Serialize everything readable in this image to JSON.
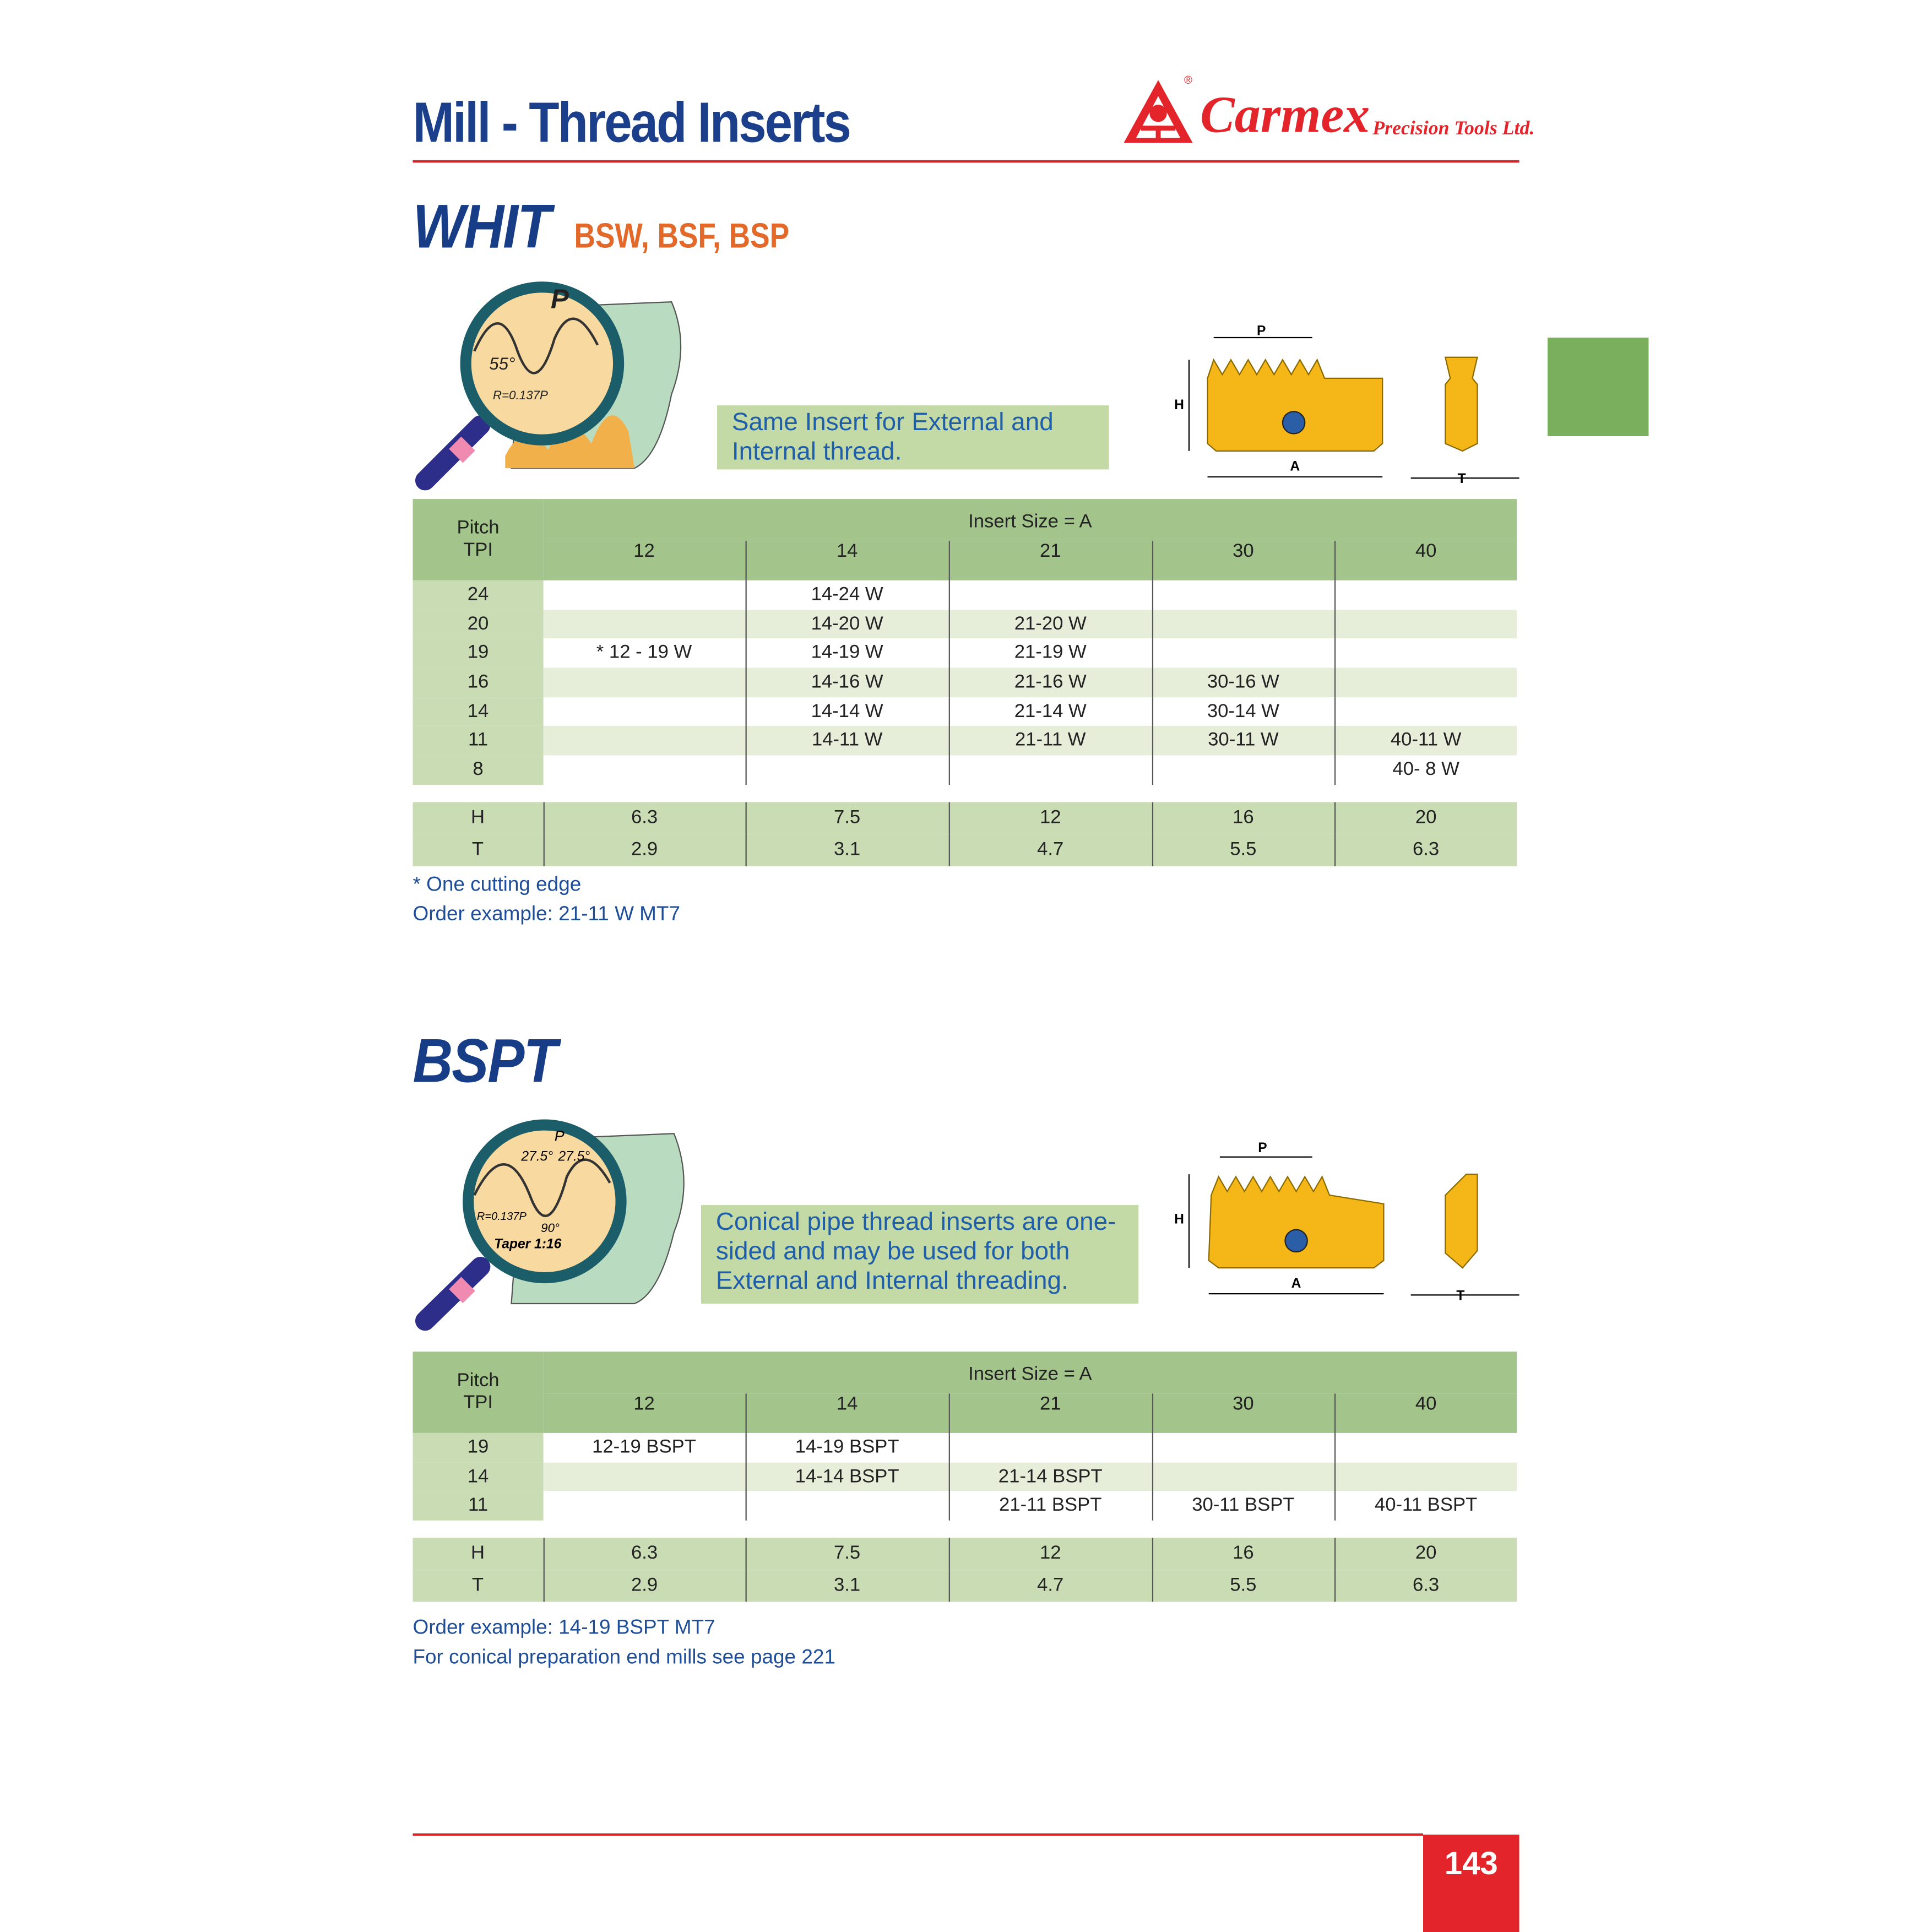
{
  "header": {
    "title": "Mill - Thread Inserts",
    "brand": "Carmex",
    "brand_sub": "Precision Tools Ltd.",
    "registered": "®"
  },
  "whit": {
    "title": "WHIT",
    "subtitle": "BSW, BSF, BSP",
    "illustration_labels": {
      "p": "P",
      "angle": "55°",
      "radius": "R=0.137P"
    },
    "note": "Same Insert for External and Internal thread.",
    "drawing_labels": {
      "p": "P",
      "h": "H",
      "a": "A",
      "t": "T"
    },
    "table": {
      "pitch_header": [
        "Pitch",
        "TPI"
      ],
      "size_header": "Insert Size = A",
      "sizes": [
        "12",
        "14",
        "21",
        "30",
        "40"
      ],
      "rows": [
        {
          "tpi": "24",
          "cells": [
            "",
            "14-24 W",
            "",
            "",
            ""
          ]
        },
        {
          "tpi": "20",
          "cells": [
            "",
            "14-20 W",
            "21-20 W",
            "",
            ""
          ]
        },
        {
          "tpi": "19",
          "cells": [
            "* 12 - 19 W",
            "14-19 W",
            "21-19 W",
            "",
            ""
          ]
        },
        {
          "tpi": "16",
          "cells": [
            "",
            "14-16 W",
            "21-16 W",
            "30-16 W",
            ""
          ]
        },
        {
          "tpi": "14",
          "cells": [
            "",
            "14-14 W",
            "21-14 W",
            "30-14 W",
            ""
          ]
        },
        {
          "tpi": "11",
          "cells": [
            "",
            "14-11 W",
            "21-11 W",
            "30-11 W",
            "40-11 W"
          ]
        },
        {
          "tpi": "8",
          "cells": [
            "",
            "",
            "",
            "",
            "40-  8 W"
          ]
        }
      ],
      "dims": [
        {
          "label": "H",
          "values": [
            "6.3",
            "7.5",
            "12",
            "16",
            "20"
          ]
        },
        {
          "label": "T",
          "values": [
            "2.9",
            "3.1",
            "4.7",
            "5.5",
            "6.3"
          ]
        }
      ]
    },
    "footnotes": [
      "* One cutting edge",
      "Order example: 21-11 W MT7"
    ]
  },
  "bspt": {
    "title": "BSPT",
    "illustration_labels": {
      "p": "P",
      "angle1": "27.5°",
      "angle2": "27.5°",
      "radius": "R=0.137P",
      "right": "90°",
      "taper": "Taper 1:16"
    },
    "note": "Conical pipe thread inserts are one-sided and may be used for both External and Internal threading.",
    "drawing_labels": {
      "p": "P",
      "h": "H",
      "a": "A",
      "t": "T"
    },
    "table": {
      "pitch_header": [
        "Pitch",
        "TPI"
      ],
      "size_header": "Insert Size = A",
      "sizes": [
        "12",
        "14",
        "21",
        "30",
        "40"
      ],
      "rows": [
        {
          "tpi": "19",
          "cells": [
            "12-19 BSPT",
            "14-19 BSPT",
            "",
            "",
            ""
          ]
        },
        {
          "tpi": "14",
          "cells": [
            "",
            "14-14 BSPT",
            "21-14 BSPT",
            "",
            ""
          ]
        },
        {
          "tpi": "11",
          "cells": [
            "",
            "",
            "21-11 BSPT",
            "30-11 BSPT",
            "40-11 BSPT"
          ]
        }
      ],
      "dims": [
        {
          "label": "H",
          "values": [
            "6.3",
            "7.5",
            "12",
            "16",
            "20"
          ]
        },
        {
          "label": "T",
          "values": [
            "2.9",
            "3.1",
            "4.7",
            "5.5",
            "6.3"
          ]
        }
      ]
    },
    "footnotes": [
      "Order example: 14-19 BSPT MT7",
      "For conical preparation end mills see page 221"
    ]
  },
  "page_number": "143",
  "colors": {
    "navy": "#1b3f8b",
    "red": "#d8242b",
    "orange": "#e2692a",
    "green_tab": "#7aaf5e",
    "table_header": "#a3c58c",
    "insert_gold": "#f5b717"
  }
}
